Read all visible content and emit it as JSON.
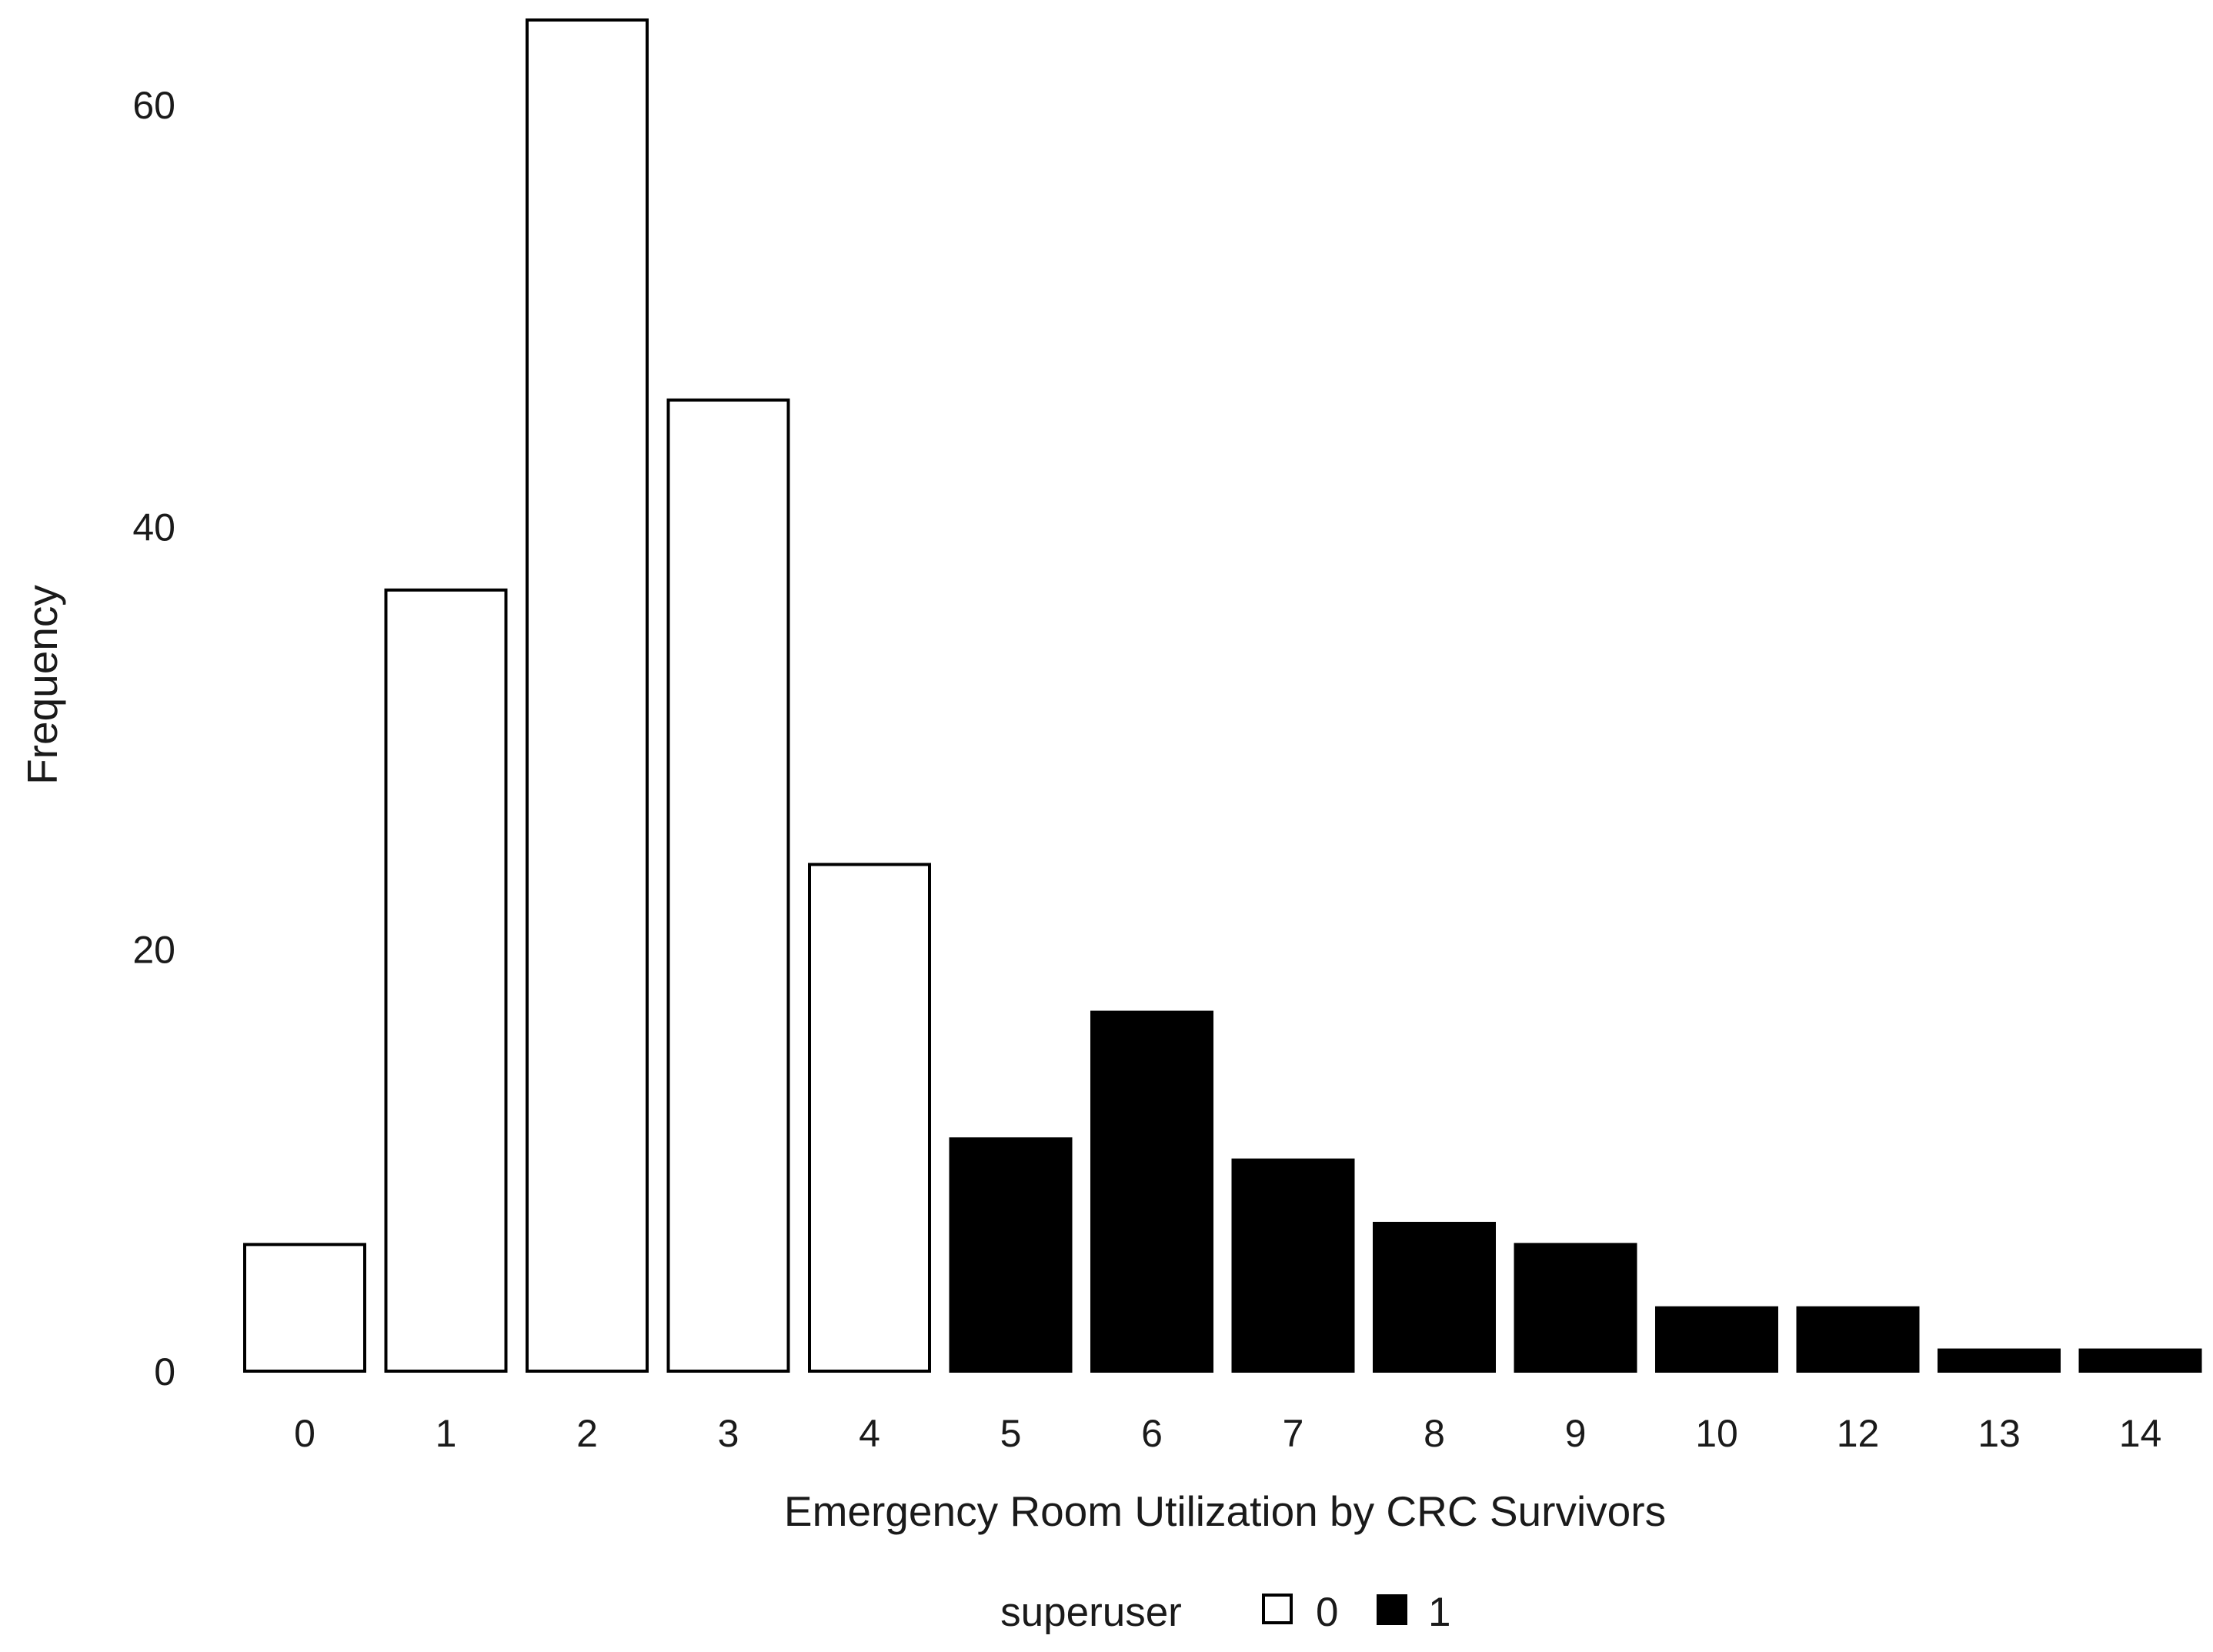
{
  "chart_data": {
    "type": "bar",
    "xlabel": "Emergency Room Utilization by CRC Survivors",
    "ylabel": "Frequency",
    "ylim": [
      0,
      64
    ],
    "yticks": [
      0,
      20,
      40,
      60
    ],
    "grid": false,
    "legend_position": "bottom",
    "categories": [
      "0",
      "1",
      "2",
      "3",
      "4",
      "5",
      "6",
      "7",
      "8",
      "9",
      "10",
      "12",
      "13",
      "14"
    ],
    "values": [
      6,
      37,
      64,
      46,
      24,
      11,
      17,
      10,
      7,
      6,
      3,
      3,
      1,
      1
    ],
    "group": [
      "0",
      "0",
      "0",
      "0",
      "0",
      "1",
      "1",
      "1",
      "1",
      "1",
      "1",
      "1",
      "1",
      "1"
    ],
    "legend": {
      "title": "superuser",
      "entries": [
        {
          "label": "0",
          "fill": "#ffffff"
        },
        {
          "label": "1",
          "fill": "#000000"
        }
      ]
    }
  }
}
